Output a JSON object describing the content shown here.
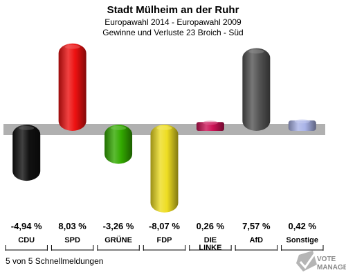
{
  "header": {
    "title": "Stadt Mülheim an der Ruhr",
    "subtitle1": "Europawahl 2014 - Europawahl 2009",
    "subtitle2": "Gewinne und Verluste 23 Broich - Süd"
  },
  "footer": {
    "text": "5 von 5 Schnellmeldungen"
  },
  "logo": {
    "line1": "VOTE",
    "line2": "MANAGER",
    "icon": "checkmark-ballot-icon"
  },
  "chart_data": {
    "type": "bar",
    "title": "Stadt Mülheim an der Ruhr",
    "subtitle": "Europawahl 2014 - Europawahl 2009 / Gewinne und Verluste 23 Broich - Süd",
    "xlabel": "",
    "ylabel": "",
    "ylim": [
      -10,
      10
    ],
    "grid": false,
    "legend": "none",
    "categories": [
      "CDU",
      "SPD",
      "GRÜNE",
      "FDP",
      "DIE\nLINKE",
      "AfD",
      "Sonstige"
    ],
    "values": [
      -4.94,
      8.03,
      -3.26,
      -8.07,
      0.26,
      7.57,
      0.42
    ],
    "value_labels": [
      "-4,94 %",
      "8,03 %",
      "-3,26 %",
      "-8,07 %",
      "0,26 %",
      "7,57 %",
      "0,42 %"
    ],
    "colors": [
      "#111111",
      "#ee1111",
      "#33aa00",
      "#eedd22",
      "#cc1155",
      "#555555",
      "#aab4e8"
    ]
  }
}
